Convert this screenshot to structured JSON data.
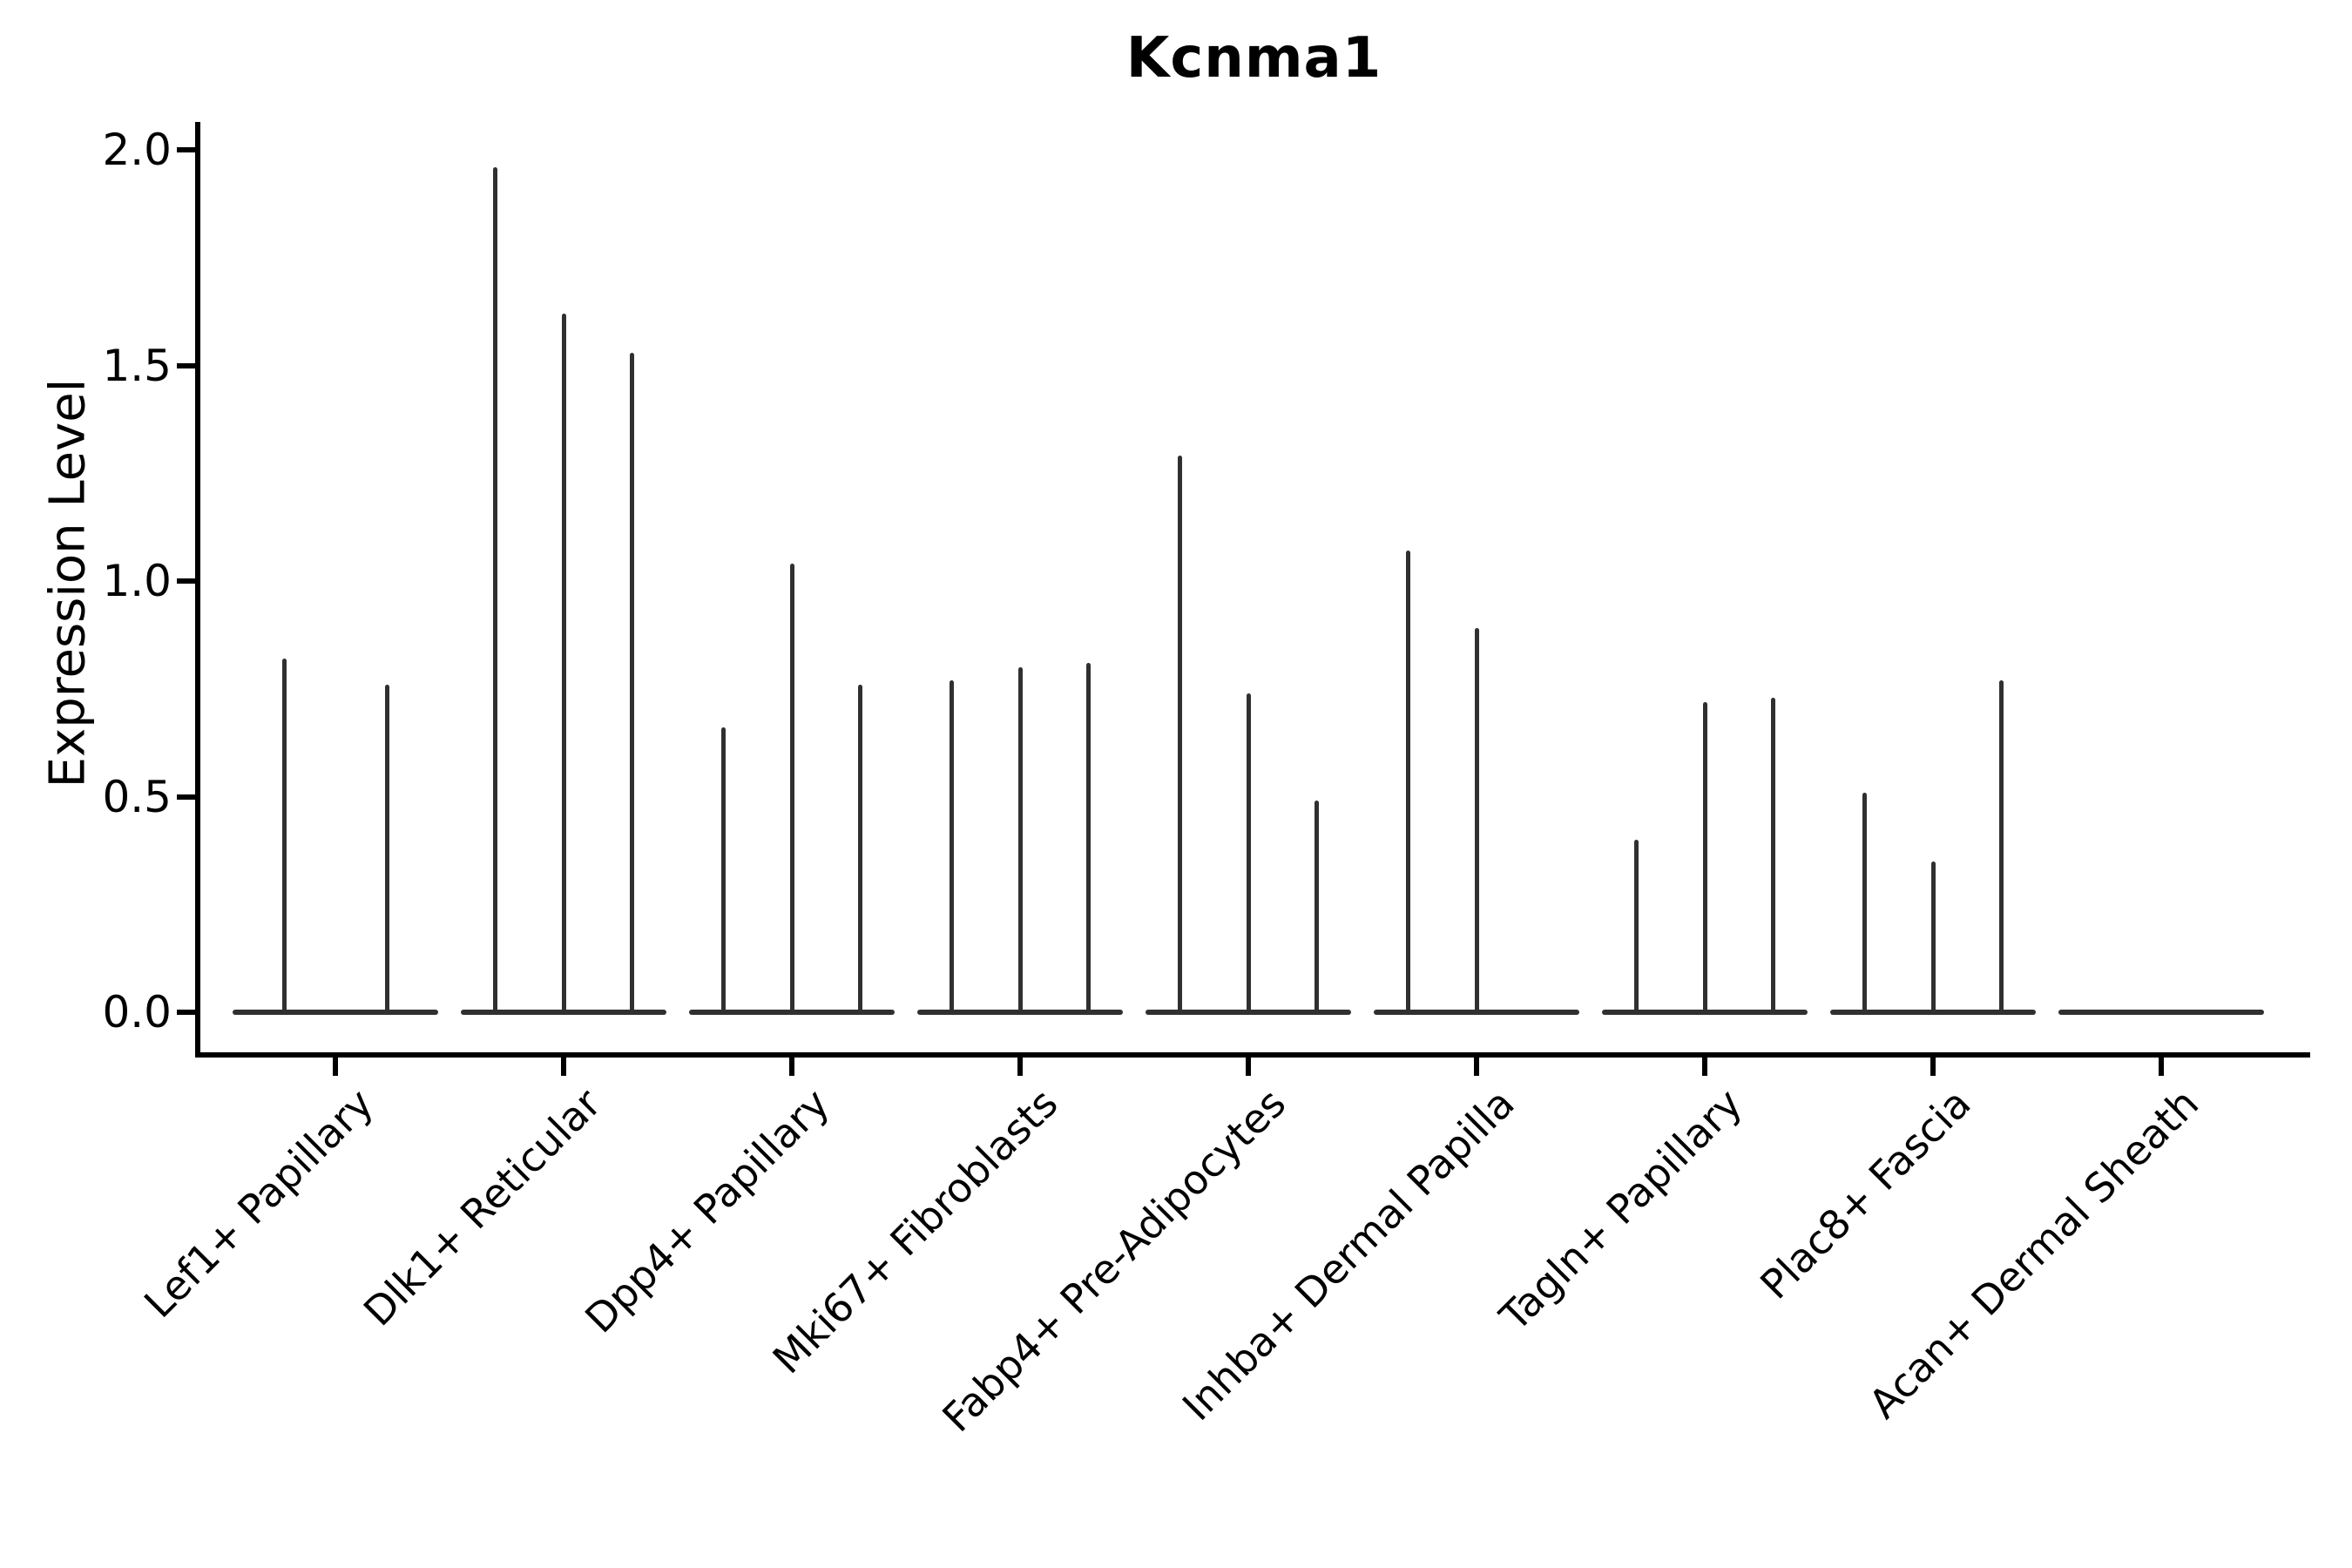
{
  "chart_data": {
    "type": "violin",
    "title": "Kcnma1",
    "ylabel": "Expression Level",
    "xlabel": "",
    "ylim": [
      0,
      2.05
    ],
    "yticks": [
      0.0,
      0.5,
      1.0,
      1.5,
      2.0
    ],
    "grid": false,
    "legend": "none",
    "line_color": "#303030",
    "axis_color": "#000000",
    "note": "Each cell-type category contains multiple ultra-thin violins (collapsed to vertical spikes); values are the maximum expression level reached by each violin, 0.0 = completely flat violin on the baseline",
    "categories": [
      "Lef1+ Papillary",
      "Dlk1+ Reticular",
      "Dpp4+ Papillary",
      "Mki67+ Fibroblasts",
      "Fabp4+ Pre-Adipocytes",
      "Inhba+ Dermal Papilla",
      "Tagln+ Papillary",
      "Plac8+ Fascia",
      "Acan+ Dermal Sheath"
    ],
    "series": [
      {
        "category": "Lef1+ Papillary",
        "violin_max_values": [
          0.82,
          0.76
        ]
      },
      {
        "category": "Dlk1+ Reticular",
        "violin_max_values": [
          1.96,
          1.62,
          1.53
        ]
      },
      {
        "category": "Dpp4+ Papillary",
        "violin_max_values": [
          0.66,
          1.04,
          0.76
        ]
      },
      {
        "category": "Mki67+ Fibroblasts",
        "violin_max_values": [
          0.77,
          0.8,
          0.81
        ]
      },
      {
        "category": "Fabp4+ Pre-Adipocytes",
        "violin_max_values": [
          1.29,
          0.74,
          0.49
        ]
      },
      {
        "category": "Inhba+ Dermal Papilla",
        "violin_max_values": [
          1.07,
          0.89,
          0.0
        ]
      },
      {
        "category": "Tagln+ Papillary",
        "violin_max_values": [
          0.4,
          0.72,
          0.73
        ]
      },
      {
        "category": "Plac8+ Fascia",
        "violin_max_values": [
          0.51,
          0.35,
          0.77
        ]
      },
      {
        "category": "Acan+ Dermal Sheath",
        "violin_max_values": [
          0.0,
          0.0,
          0.0
        ]
      }
    ]
  }
}
